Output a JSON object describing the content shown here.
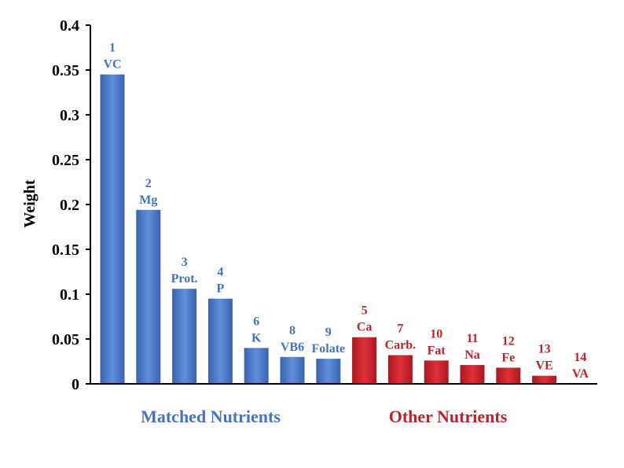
{
  "chart_data": {
    "type": "bar",
    "ylabel": "Weight",
    "ylim": [
      0,
      0.4
    ],
    "yticks": [
      "0",
      "0.05",
      "0.1",
      "0.15",
      "0.2",
      "0.25",
      "0.3",
      "0.35",
      "0.4"
    ],
    "bars": [
      {
        "rank": "1",
        "name": "VC",
        "value": 0.345,
        "group": "matched"
      },
      {
        "rank": "2",
        "name": "Mg",
        "value": 0.194,
        "group": "matched"
      },
      {
        "rank": "3",
        "name": "Prot.",
        "value": 0.106,
        "group": "matched"
      },
      {
        "rank": "4",
        "name": "P",
        "value": 0.095,
        "group": "matched"
      },
      {
        "rank": "6",
        "name": "K",
        "value": 0.04,
        "group": "matched"
      },
      {
        "rank": "8",
        "name": "VB6",
        "value": 0.03,
        "group": "matched"
      },
      {
        "rank": "9",
        "name": "Folate",
        "value": 0.028,
        "group": "matched"
      },
      {
        "rank": "5",
        "name": "Ca",
        "value": 0.052,
        "group": "other"
      },
      {
        "rank": "7",
        "name": "Carb.",
        "value": 0.032,
        "group": "other"
      },
      {
        "rank": "10",
        "name": "Fat",
        "value": 0.026,
        "group": "other"
      },
      {
        "rank": "11",
        "name": "Na",
        "value": 0.021,
        "group": "other"
      },
      {
        "rank": "12",
        "name": "Fe",
        "value": 0.018,
        "group": "other"
      },
      {
        "rank": "13",
        "name": "VE",
        "value": 0.009,
        "group": "other"
      },
      {
        "rank": "14",
        "name": "VA",
        "value": 0.0,
        "group": "other"
      }
    ],
    "groups": {
      "matched": {
        "label": "Matched Nutrients",
        "color": "#4472C4",
        "text_color": "#4472C4"
      },
      "other": {
        "label": "Other Nutrients",
        "color": "#C0202A",
        "text_color": "#C0202A"
      }
    },
    "grid": false
  }
}
